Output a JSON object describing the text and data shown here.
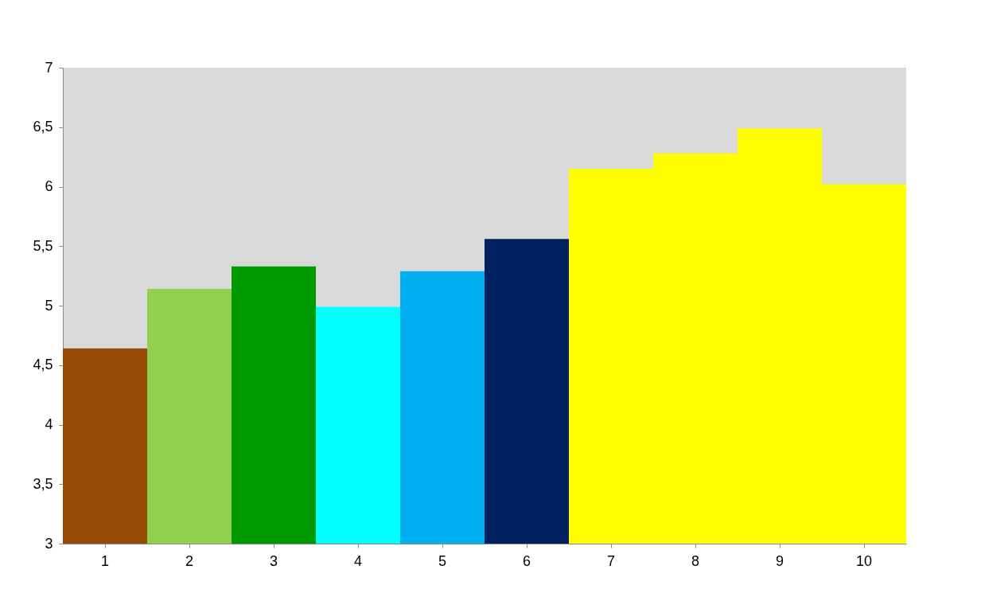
{
  "chart_data": {
    "type": "bar",
    "categories": [
      "1",
      "2",
      "3",
      "4",
      "5",
      "6",
      "7",
      "8",
      "9",
      "10"
    ],
    "values": [
      4.64,
      5.14,
      5.33,
      4.99,
      5.29,
      5.56,
      6.15,
      6.28,
      6.49,
      6.02
    ],
    "colors": [
      "#964b06",
      "#92d050",
      "#009900",
      "#00ffff",
      "#00b0f0",
      "#002060",
      "#ffff00",
      "#ffff00",
      "#ffff00",
      "#ffff00"
    ],
    "ylim": [
      3,
      7
    ],
    "yticks": [
      3,
      {
        "value": 3.5,
        "label": "3,5"
      },
      4,
      {
        "value": 4.5,
        "label": "4,5"
      },
      5,
      {
        "value": 5.5,
        "label": "5,5"
      },
      6,
      {
        "value": 6.5,
        "label": "6,5"
      },
      7
    ],
    "grid": false
  }
}
